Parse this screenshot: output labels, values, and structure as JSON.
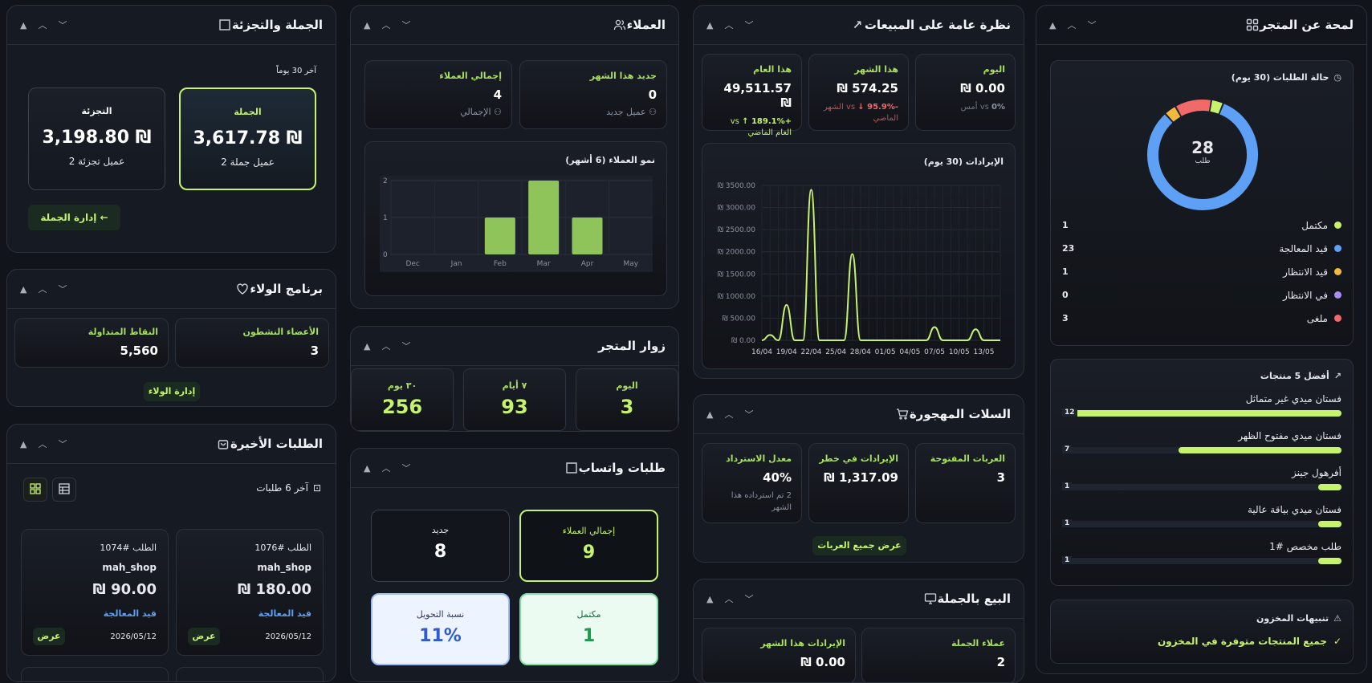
{
  "panels": {
    "dashboard": {
      "title": "لمحة عن المتجر"
    },
    "sales": {
      "title": "نظرة عامة على المبيعات"
    },
    "customers": {
      "title": "العملاء"
    },
    "wholesale_retail": {
      "title": "الجملة والتجزئة"
    },
    "visitors": {
      "title": "زوار المتجر"
    },
    "whatsapp": {
      "title": "طلبات واتساب"
    },
    "abandoned": {
      "title": "السلات المهجورة"
    },
    "wholesale_sales": {
      "title": "البيع بالجملة"
    },
    "loyalty": {
      "title": "برنامج الولاء"
    },
    "recent_orders": {
      "title": "الطلبات الأخيرة"
    }
  },
  "order_status": {
    "title": "حالة الطلبات (30 يوم)",
    "total": "28",
    "total_label": "طلب",
    "items": [
      {
        "label": "مكتمل",
        "count": "1",
        "color": "#c6f36b"
      },
      {
        "label": "قيد المعالجة",
        "count": "23",
        "color": "#5ea0f5"
      },
      {
        "label": "قيد الانتظار",
        "count": "1",
        "color": "#f3b93c"
      },
      {
        "label": "في الانتظار",
        "count": "0",
        "color": "#a98ef5"
      },
      {
        "label": "ملغى",
        "count": "3",
        "color": "#f06a6a"
      }
    ]
  },
  "top_products": {
    "title": "أفضل 5 منتجات",
    "items": [
      {
        "name": "فستان ميدي غير متماثل",
        "count": "12",
        "value": 12
      },
      {
        "name": "فستان ميدي مفتوح الظهر",
        "count": "7",
        "value": 7
      },
      {
        "name": "أفرهول جينز",
        "count": "1",
        "value": 1
      },
      {
        "name": "فستان ميدي بياقة عالية",
        "count": "1",
        "value": 1
      },
      {
        "name": "طلب مخصص #1",
        "count": "1",
        "value": 1
      }
    ]
  },
  "stock_alerts": {
    "title": "تنبيهات المخزون",
    "message": "جميع المنتجات متوفرة في المخزون"
  },
  "sales_stats": [
    {
      "label": "اليوم",
      "value": "0.00 ₪",
      "change": "0%",
      "note": "vs أمس",
      "trend": "flat"
    },
    {
      "label": "هذا الشهر",
      "value": "574.25 ₪",
      "change": "-95.9% ↓",
      "note": "vs الشهر الماضي",
      "trend": "down"
    },
    {
      "label": "هذا العام",
      "value": "49,511.57 ₪",
      "change": "+189.1% ↑",
      "note": "vs العام الماضي",
      "trend": "up"
    }
  ],
  "revenue_chart_title": "الإيرادات (30 يوم)",
  "chart_data": {
    "type": "line",
    "title": "الإيرادات (30 يوم)",
    "x": [
      "16/04",
      "17/04",
      "18/04",
      "19/04",
      "20/04",
      "21/04",
      "22/04",
      "23/04",
      "24/04",
      "25/04",
      "26/04",
      "27/04",
      "28/04",
      "29/04",
      "30/04",
      "01/05",
      "02/05",
      "03/05",
      "04/05",
      "05/05",
      "06/05",
      "07/05",
      "08/05",
      "09/05",
      "10/05",
      "11/05",
      "12/05",
      "13/05",
      "14/05",
      "15/05"
    ],
    "y": [
      0,
      120,
      0,
      800,
      0,
      0,
      3400,
      0,
      0,
      0,
      0,
      1950,
      0,
      0,
      0,
      0,
      0,
      0,
      0,
      0,
      0,
      300,
      0,
      0,
      0,
      0,
      250,
      0,
      0,
      0
    ],
    "xticks": [
      "16/04",
      "19/04",
      "22/04",
      "25/04",
      "28/04",
      "01/05",
      "04/05",
      "07/05",
      "10/05",
      "13/05"
    ],
    "yticks": [
      "₪ 0.00",
      "₪ 500.00",
      "₪ 1000.00",
      "₪ 1500.00",
      "₪ 2000.00",
      "₪ 2500.00",
      "₪ 3000.00",
      "₪ 3500.00"
    ],
    "ylim": [
      0,
      3500
    ],
    "grid": true,
    "color": "#c6f36b"
  },
  "customers": {
    "new_label": "جديد هذا الشهر",
    "new_value": "0",
    "new_sub": "عميل جديد",
    "total_label": "إجمالي العملاء",
    "total_value": "4",
    "total_sub": "الإجمالي",
    "growth_title": "نمو العملاء (6 أشهر)",
    "growth_chart": {
      "type": "bar",
      "categories": [
        "Dec",
        "Jan",
        "Feb",
        "Mar",
        "Apr",
        "May"
      ],
      "values": [
        0,
        0,
        1,
        2,
        1,
        0
      ],
      "yticks": [
        "0",
        "1",
        "2"
      ],
      "ylim": [
        0,
        2
      ],
      "color": "#8fc45a"
    }
  },
  "wholesale_retail": {
    "period": "آخر 30 يوماً",
    "wholesale_label": "الجملة",
    "wholesale_value": "3,617.78 ₪",
    "wholesale_sub": "2 عميل جملة",
    "retail_label": "التجزئة",
    "retail_value": "3,198.80 ₪",
    "retail_sub": "2 عميل تجزئة",
    "manage_button": "إدارة الجملة ←"
  },
  "visitors": [
    {
      "label": "اليوم",
      "value": "3"
    },
    {
      "label": "٧ أيام",
      "value": "93"
    },
    {
      "label": "٣٠ يوم",
      "value": "256"
    }
  ],
  "whatsapp": {
    "total_label": "إجمالي العملاء",
    "total_value": "9",
    "new_label": "جديد",
    "new_value": "8",
    "completed_label": "مكتمل",
    "completed_value": "1",
    "conversion_label": "نسبة التحويل",
    "conversion_value": "11%"
  },
  "abandoned": {
    "open_label": "العربات المفتوحة",
    "open_value": "3",
    "risk_label": "الإيرادات في خطر",
    "risk_value": "1,317.09 ₪",
    "recovery_label": "معدل الاسترداد",
    "recovery_value": "40%",
    "recovery_sub": "2 تم استرداده هذا الشهر",
    "view_button": "عرض جميع العربات"
  },
  "wholesale_sales": {
    "customers_label": "عملاء الجملة",
    "customers_value": "2",
    "revenue_label": "الإيرادات هذا الشهر",
    "revenue_value": "0.00 ₪"
  },
  "loyalty": {
    "active_label": "الأعضاء النشطون",
    "active_value": "3",
    "points_label": "النقاط المتداولة",
    "points_value": "5,560",
    "manage_button": "إدارة الولاء"
  },
  "recent_orders": {
    "subtitle": "آخر 6 طلبات",
    "orders": [
      {
        "number": "الطلب #1076",
        "customer": "mah_shop",
        "amount": "180.00 ₪",
        "status": "قيد المعالجة",
        "date": "2026/05/12",
        "action": "عرض"
      },
      {
        "number": "الطلب #1074",
        "customer": "mah_shop",
        "amount": "90.00 ₪",
        "status": "قيد المعالجة",
        "date": "2026/05/12",
        "action": "عرض"
      }
    ]
  }
}
